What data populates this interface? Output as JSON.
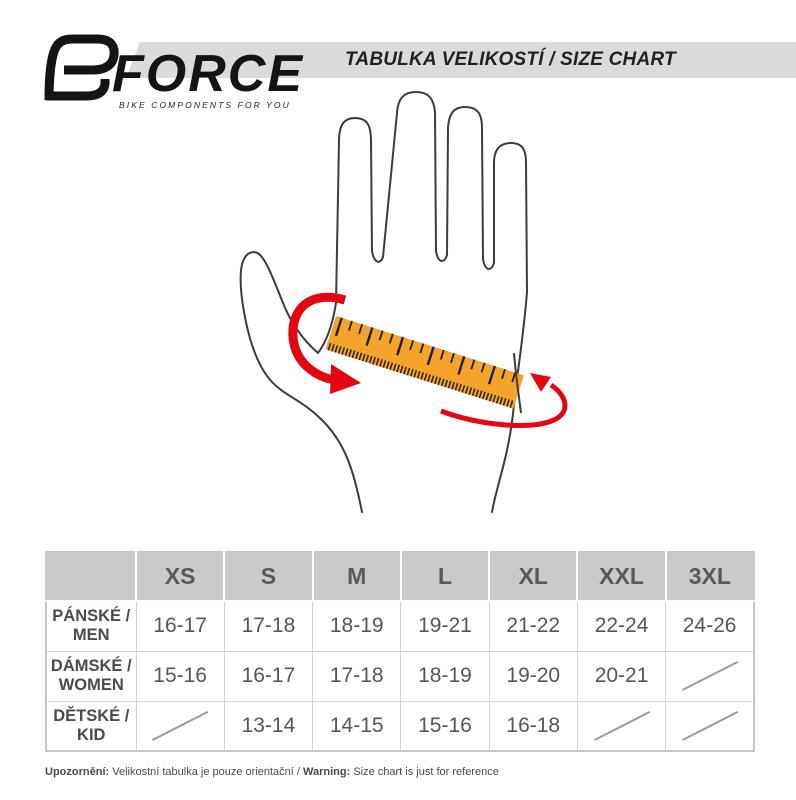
{
  "logo": {
    "brand": "FORCE",
    "tagline": "BIKE COMPONENTS FOR YOU"
  },
  "header": {
    "title": "TABULKA VELIKOSTÍ / SIZE CHART"
  },
  "illustration": {
    "name": "hand-with-measuring-tape",
    "tape_color": "#F5A42B",
    "arrow_color": "#E30613",
    "outline_color": "#3C3C3C"
  },
  "size_table": {
    "columns": [
      "XS",
      "S",
      "M",
      "L",
      "XL",
      "XXL",
      "3XL"
    ],
    "rows": [
      {
        "label_line1": "PÁNSKÉ /",
        "label_line2": "MEN",
        "values": [
          "16-17",
          "17-18",
          "18-19",
          "19-21",
          "21-22",
          "22-24",
          "24-26"
        ]
      },
      {
        "label_line1": "DÁMSKÉ /",
        "label_line2": "WOMEN",
        "values": [
          "15-16",
          "16-17",
          "17-18",
          "18-19",
          "19-20",
          "20-21",
          ""
        ]
      },
      {
        "label_line1": "DĚTSKÉ /",
        "label_line2": "KID",
        "values": [
          "",
          "13-14",
          "14-15",
          "15-16",
          "16-18",
          "",
          ""
        ]
      }
    ]
  },
  "footer": {
    "warning_cz_label": "Upozornění:",
    "warning_cz_text": " Velikostní tabulka je pouze orientační / ",
    "warning_en_label": "Warning:",
    "warning_en_text": " Size chart is just for reference"
  },
  "colors": {
    "band_gray": "#DBDBDB",
    "table_header_gray": "#CACACA",
    "text_gray": "#55565A"
  }
}
